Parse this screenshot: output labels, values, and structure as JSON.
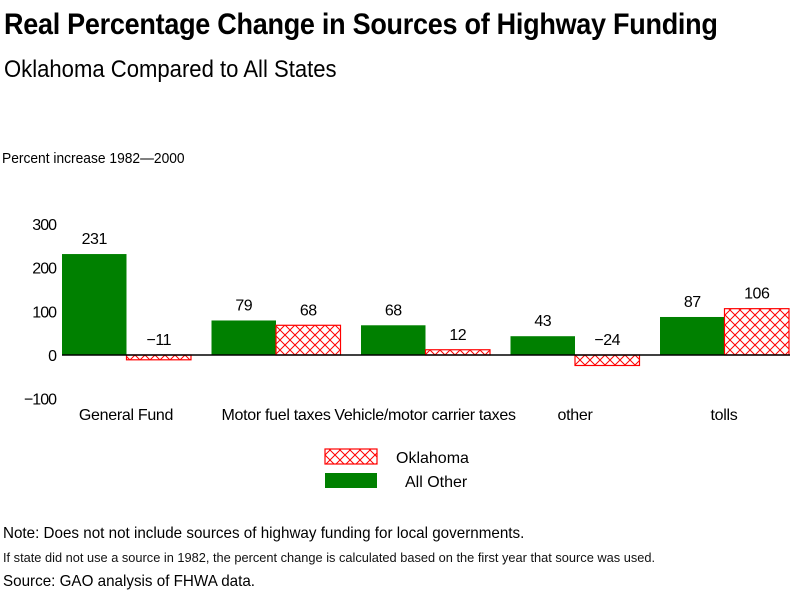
{
  "chart_data": {
    "type": "bar",
    "title": "Real Percentage Change in Sources of Highway Funding",
    "subtitle": "Oklahoma Compared to All States",
    "xlabel": "",
    "ylabel": "Percent increase 1982—2000",
    "ylim": [
      -100,
      300
    ],
    "yticks": [
      300,
      200,
      100,
      0,
      -100
    ],
    "ytick_labels": [
      "300",
      "200",
      "100",
      "0",
      "−100"
    ],
    "grid": false,
    "categories": [
      "General Fund",
      "Motor fuel taxes",
      "Vehicle/motor carrier taxes",
      "other",
      "tolls"
    ],
    "series": [
      {
        "name": "All Other",
        "style": "solid",
        "color": "#008000",
        "values": [
          231,
          79,
          68,
          43,
          87
        ],
        "labels": [
          "231",
          "79",
          "68",
          "43",
          "87"
        ]
      },
      {
        "name": "Oklahoma",
        "style": "crosshatch",
        "color": "#ff0000",
        "values": [
          -11,
          68,
          12,
          -24,
          106
        ],
        "labels": [
          "−11",
          "68",
          "12",
          "−24",
          "106"
        ]
      }
    ],
    "legend": {
      "position": "bottom-center",
      "entries": [
        {
          "label": "Oklahoma",
          "series": "Oklahoma"
        },
        {
          "label": "All Other",
          "series": "All Other"
        }
      ]
    }
  },
  "notes": {
    "note": "Note: Does not not include sources of highway funding for local governments.",
    "method": "If state did not use a source in 1982, the percent change is calculated based on the first year that source was used.",
    "source": "Source: GAO analysis of FHWA data."
  }
}
